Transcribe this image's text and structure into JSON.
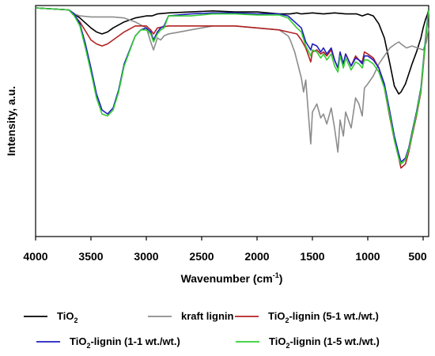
{
  "chart_data": {
    "type": "line",
    "xlabel": "Wavenumber (cm",
    "xlabel_sup": "-1",
    "xlabel_end": ")",
    "ylabel": "Intensity, a.u.",
    "xlim": [
      4000,
      450
    ],
    "x_reversed": true,
    "ylim": [
      0,
      1
    ],
    "y_ticks_shown": false,
    "grid": false,
    "legend_placement": "bottom",
    "x_ticks": [
      4000,
      3500,
      3000,
      2500,
      2000,
      1500,
      1000,
      500
    ],
    "series": [
      {
        "name": "TiO2",
        "legend_main": "TiO",
        "legend_sub": "2",
        "legend_rest": "",
        "color": "#000000",
        "x": [
          4000,
          3700,
          3600,
          3500,
          3450,
          3400,
          3350,
          3300,
          3200,
          3100,
          3000,
          2950,
          2900,
          2800,
          2600,
          2400,
          2200,
          2000,
          1800,
          1700,
          1640,
          1600,
          1500,
          1400,
          1300,
          1200,
          1100,
          1050,
          1000,
          950,
          900,
          850,
          800,
          760,
          720,
          700,
          660,
          630,
          600,
          560,
          520,
          500,
          480,
          460,
          450
        ],
        "y": [
          1.0,
          0.99,
          0.95,
          0.9,
          0.88,
          0.87,
          0.88,
          0.9,
          0.93,
          0.95,
          0.96,
          0.96,
          0.97,
          0.975,
          0.98,
          0.985,
          0.98,
          0.98,
          0.97,
          0.97,
          0.975,
          0.97,
          0.975,
          0.97,
          0.975,
          0.97,
          0.97,
          0.96,
          0.97,
          0.96,
          0.92,
          0.85,
          0.72,
          0.61,
          0.57,
          0.58,
          0.62,
          0.67,
          0.72,
          0.78,
          0.85,
          0.9,
          0.94,
          0.97,
          0.99
        ]
      },
      {
        "name": "kraft lignin",
        "legend_main": "kraft lignin",
        "legend_sub": "",
        "legend_rest": "",
        "color": "#8c8c8c",
        "x": [
          4000,
          3700,
          3650,
          3600,
          3500,
          3400,
          3300,
          3200,
          3100,
          3000,
          2960,
          2935,
          2900,
          2870,
          2840,
          2800,
          2700,
          2600,
          2500,
          2400,
          2200,
          2000,
          1800,
          1720,
          1700,
          1660,
          1600,
          1580,
          1560,
          1515,
          1500,
          1460,
          1425,
          1400,
          1370,
          1330,
          1300,
          1270,
          1250,
          1220,
          1200,
          1150,
          1110,
          1080,
          1050,
          1030,
          1000,
          950,
          900,
          850,
          800,
          750,
          720,
          700,
          650,
          600,
          550,
          500,
          470,
          450
        ],
        "y": [
          1.0,
          0.99,
          0.97,
          0.96,
          0.955,
          0.955,
          0.955,
          0.95,
          0.93,
          0.9,
          0.83,
          0.79,
          0.85,
          0.84,
          0.86,
          0.87,
          0.88,
          0.89,
          0.9,
          0.91,
          0.91,
          0.9,
          0.89,
          0.86,
          0.84,
          0.78,
          0.65,
          0.58,
          0.64,
          0.32,
          0.48,
          0.52,
          0.45,
          0.47,
          0.42,
          0.5,
          0.4,
          0.28,
          0.44,
          0.36,
          0.48,
          0.4,
          0.55,
          0.52,
          0.46,
          0.6,
          0.62,
          0.66,
          0.72,
          0.76,
          0.8,
          0.82,
          0.83,
          0.82,
          0.8,
          0.81,
          0.8,
          0.79,
          0.83,
          0.9
        ]
      },
      {
        "name": "TiO2-lignin (5-1 wt./wt.)",
        "legend_main": "TiO",
        "legend_sub": "2",
        "legend_rest": "-lignin (5-1 wt./wt.)",
        "color": "#b22222",
        "x": [
          4000,
          3700,
          3600,
          3500,
          3450,
          3400,
          3350,
          3300,
          3200,
          3100,
          3000,
          2960,
          2935,
          2900,
          2800,
          2600,
          2400,
          2200,
          2000,
          1800,
          1720,
          1640,
          1600,
          1560,
          1515,
          1500,
          1460,
          1425,
          1400,
          1370,
          1330,
          1300,
          1270,
          1250,
          1220,
          1200,
          1150,
          1110,
          1080,
          1050,
          1030,
          1000,
          950,
          900,
          850,
          800,
          760,
          720,
          700,
          660,
          630,
          600,
          560,
          520,
          500,
          480,
          460,
          450
        ],
        "y": [
          1.0,
          0.99,
          0.93,
          0.84,
          0.82,
          0.81,
          0.82,
          0.84,
          0.88,
          0.91,
          0.91,
          0.89,
          0.87,
          0.9,
          0.91,
          0.91,
          0.91,
          0.91,
          0.9,
          0.89,
          0.88,
          0.87,
          0.84,
          0.8,
          0.73,
          0.78,
          0.79,
          0.77,
          0.78,
          0.76,
          0.79,
          0.74,
          0.7,
          0.77,
          0.72,
          0.77,
          0.71,
          0.76,
          0.74,
          0.73,
          0.78,
          0.77,
          0.75,
          0.7,
          0.6,
          0.45,
          0.34,
          0.25,
          0.2,
          0.22,
          0.28,
          0.36,
          0.46,
          0.58,
          0.7,
          0.82,
          0.94,
          0.99
        ]
      },
      {
        "name": "TiO2-lignin (1-1 wt./wt.)",
        "legend_main": "TiO",
        "legend_sub": "2",
        "legend_rest": "-lignin (1-1 wt./wt.)",
        "color": "#1f1fbf",
        "x": [
          4000,
          3700,
          3650,
          3600,
          3550,
          3500,
          3450,
          3400,
          3350,
          3300,
          3250,
          3200,
          3100,
          3050,
          3000,
          2960,
          2935,
          2900,
          2870,
          2840,
          2800,
          2600,
          2400,
          2200,
          2000,
          1800,
          1720,
          1640,
          1600,
          1560,
          1515,
          1500,
          1460,
          1425,
          1400,
          1370,
          1330,
          1300,
          1270,
          1250,
          1220,
          1200,
          1150,
          1110,
          1080,
          1050,
          1030,
          1000,
          950,
          900,
          850,
          800,
          760,
          720,
          700,
          660,
          630,
          600,
          560,
          520,
          500,
          480,
          460,
          450
        ],
        "y": [
          1.0,
          0.99,
          0.97,
          0.92,
          0.82,
          0.7,
          0.57,
          0.49,
          0.47,
          0.5,
          0.59,
          0.72,
          0.86,
          0.89,
          0.9,
          0.88,
          0.84,
          0.88,
          0.9,
          0.91,
          0.96,
          0.97,
          0.975,
          0.975,
          0.97,
          0.97,
          0.96,
          0.92,
          0.9,
          0.83,
          0.79,
          0.82,
          0.81,
          0.78,
          0.8,
          0.77,
          0.8,
          0.74,
          0.7,
          0.78,
          0.72,
          0.77,
          0.71,
          0.75,
          0.74,
          0.72,
          0.76,
          0.76,
          0.74,
          0.7,
          0.62,
          0.48,
          0.36,
          0.27,
          0.23,
          0.25,
          0.3,
          0.38,
          0.48,
          0.6,
          0.72,
          0.84,
          0.95,
          0.99
        ]
      },
      {
        "name": "TiO2-lignin (1-5 wt./wt.)",
        "legend_main": "TiO",
        "legend_sub": "2",
        "legend_rest": "-lignin (1-5 wt./wt.)",
        "color": "#33cc33",
        "x": [
          4000,
          3700,
          3650,
          3600,
          3550,
          3500,
          3450,
          3400,
          3350,
          3300,
          3250,
          3200,
          3100,
          3050,
          3000,
          2960,
          2935,
          2900,
          2870,
          2840,
          2800,
          2600,
          2400,
          2200,
          2000,
          1800,
          1720,
          1640,
          1600,
          1560,
          1515,
          1500,
          1460,
          1425,
          1400,
          1370,
          1330,
          1300,
          1270,
          1250,
          1220,
          1200,
          1150,
          1110,
          1080,
          1050,
          1030,
          1000,
          950,
          900,
          850,
          800,
          760,
          720,
          700,
          660,
          630,
          600,
          560,
          520,
          500,
          480,
          460,
          450
        ],
        "y": [
          1.0,
          0.99,
          0.96,
          0.91,
          0.8,
          0.68,
          0.55,
          0.47,
          0.46,
          0.49,
          0.58,
          0.71,
          0.86,
          0.89,
          0.89,
          0.87,
          0.83,
          0.87,
          0.89,
          0.9,
          0.96,
          0.96,
          0.97,
          0.97,
          0.965,
          0.965,
          0.95,
          0.9,
          0.88,
          0.81,
          0.76,
          0.79,
          0.78,
          0.75,
          0.77,
          0.74,
          0.77,
          0.71,
          0.68,
          0.76,
          0.7,
          0.75,
          0.69,
          0.73,
          0.72,
          0.7,
          0.74,
          0.74,
          0.72,
          0.68,
          0.6,
          0.46,
          0.34,
          0.25,
          0.22,
          0.24,
          0.29,
          0.37,
          0.47,
          0.59,
          0.71,
          0.83,
          0.94,
          0.99
        ]
      }
    ]
  }
}
